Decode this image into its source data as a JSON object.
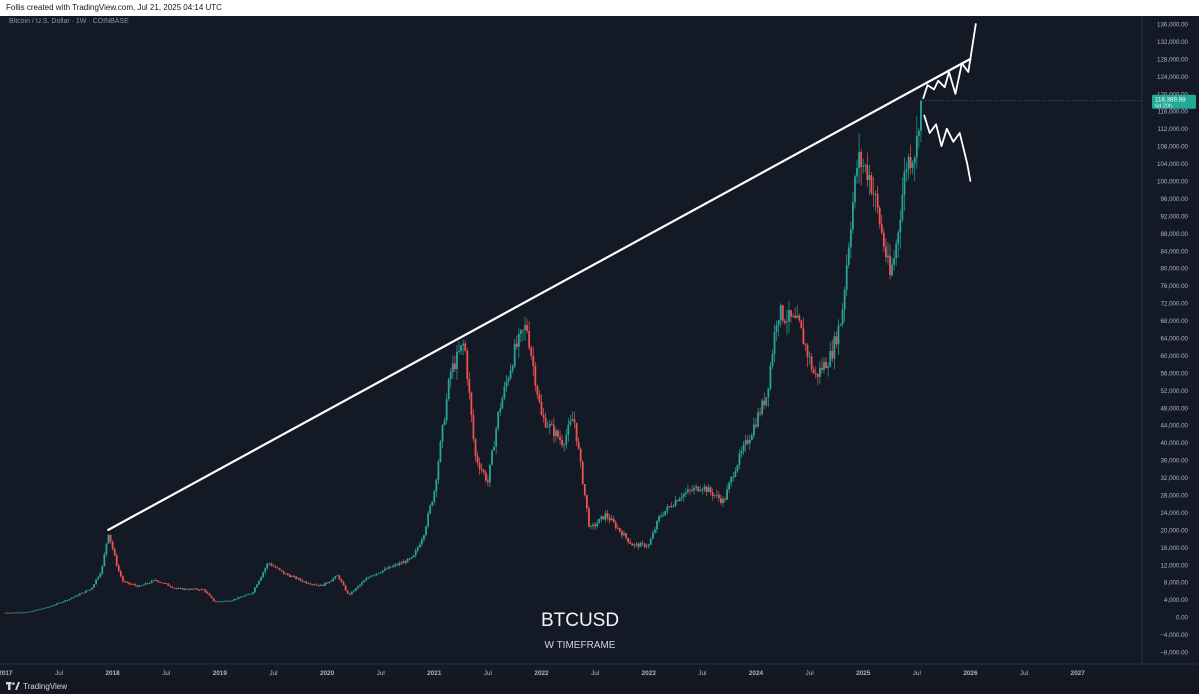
{
  "header": {
    "credit": "Follis created with TradingView.com, Jul 21, 2025 04:14 UTC",
    "symbol_info": "Bitcoin / U.S. Dollar · 1W · COINBASE"
  },
  "annotation": {
    "title": "BTCUSD",
    "subtitle": "W TIMEFRAME"
  },
  "footer": {
    "brand": "TradingView"
  },
  "colors": {
    "background": "#131a26",
    "up": "#26a69a",
    "down": "#ef5350",
    "trendline": "#ffffff",
    "price_tag": "#22ab94",
    "axis_text": "#b2b5be"
  },
  "chart_data": {
    "type": "candlestick",
    "symbol": "BTCUSD",
    "timeframe": "1W",
    "exchange": "COINBASE",
    "y_axis": {
      "range": [
        -8000,
        136000
      ],
      "ticks": [
        "136,000.00",
        "132,000.00",
        "128,000.00",
        "124,000.00",
        "120,000.00",
        "116,000.00",
        "112,000.00",
        "108,000.00",
        "104,000.00",
        "100,000.00",
        "96,000.00",
        "92,000.00",
        "88,000.00",
        "84,000.00",
        "80,000.00",
        "76,000.00",
        "72,000.00",
        "68,000.00",
        "64,000.00",
        "60,000.00",
        "56,000.00",
        "52,000.00",
        "48,000.00",
        "44,000.00",
        "40,000.00",
        "36,000.00",
        "32,000.00",
        "28,000.00",
        "24,000.00",
        "20,000.00",
        "16,000.00",
        "12,000.00",
        "8,000.00",
        "4,000.00",
        "0.00",
        "−4,000.00",
        "−8,000.00"
      ],
      "tick_values": [
        136000,
        132000,
        128000,
        124000,
        120000,
        116000,
        112000,
        108000,
        104000,
        100000,
        96000,
        92000,
        88000,
        84000,
        80000,
        76000,
        72000,
        68000,
        64000,
        60000,
        56000,
        52000,
        48000,
        44000,
        40000,
        36000,
        32000,
        28000,
        24000,
        20000,
        16000,
        12000,
        8000,
        4000,
        0,
        -4000,
        -8000
      ]
    },
    "x_axis": {
      "range": [
        2016.95,
        2027.6
      ],
      "ticks": [
        {
          "t": 2017.0,
          "label": "2017"
        },
        {
          "t": 2017.5,
          "label": "Jul"
        },
        {
          "t": 2018.0,
          "label": "2018"
        },
        {
          "t": 2018.5,
          "label": "Jul"
        },
        {
          "t": 2019.0,
          "label": "2019"
        },
        {
          "t": 2019.5,
          "label": "Jul"
        },
        {
          "t": 2020.0,
          "label": "2020"
        },
        {
          "t": 2020.5,
          "label": "Jul"
        },
        {
          "t": 2021.0,
          "label": "2021"
        },
        {
          "t": 2021.5,
          "label": "Jul"
        },
        {
          "t": 2022.0,
          "label": "2022"
        },
        {
          "t": 2022.5,
          "label": "Jul"
        },
        {
          "t": 2023.0,
          "label": "2023"
        },
        {
          "t": 2023.5,
          "label": "Jul"
        },
        {
          "t": 2024.0,
          "label": "2024"
        },
        {
          "t": 2024.5,
          "label": "Jul"
        },
        {
          "t": 2025.0,
          "label": "2025"
        },
        {
          "t": 2025.5,
          "label": "Jul"
        },
        {
          "t": 2026.0,
          "label": "2026"
        },
        {
          "t": 2026.5,
          "label": "Jul"
        },
        {
          "t": 2027.0,
          "label": "2027"
        }
      ]
    },
    "price_path": [
      [
        2017.0,
        1000
      ],
      [
        2017.2,
        1100
      ],
      [
        2017.4,
        2300
      ],
      [
        2017.6,
        4200
      ],
      [
        2017.8,
        6500
      ],
      [
        2017.9,
        11000
      ],
      [
        2017.96,
        19500
      ],
      [
        2018.05,
        11000
      ],
      [
        2018.1,
        8000
      ],
      [
        2018.25,
        7000
      ],
      [
        2018.4,
        8500
      ],
      [
        2018.6,
        6500
      ],
      [
        2018.85,
        6300
      ],
      [
        2018.95,
        3500
      ],
      [
        2019.1,
        3800
      ],
      [
        2019.3,
        5500
      ],
      [
        2019.45,
        12500
      ],
      [
        2019.6,
        10000
      ],
      [
        2019.8,
        8000
      ],
      [
        2019.95,
        7200
      ],
      [
        2020.1,
        9500
      ],
      [
        2020.2,
        5000
      ],
      [
        2020.4,
        9500
      ],
      [
        2020.6,
        11500
      ],
      [
        2020.8,
        13500
      ],
      [
        2020.9,
        19000
      ],
      [
        2021.0,
        29000
      ],
      [
        2021.15,
        56000
      ],
      [
        2021.28,
        63000
      ],
      [
        2021.38,
        37000
      ],
      [
        2021.5,
        31000
      ],
      [
        2021.6,
        47000
      ],
      [
        2021.75,
        61000
      ],
      [
        2021.86,
        67000
      ],
      [
        2022.0,
        46000
      ],
      [
        2022.2,
        40000
      ],
      [
        2022.3,
        46000
      ],
      [
        2022.45,
        20000
      ],
      [
        2022.6,
        23500
      ],
      [
        2022.85,
        16500
      ],
      [
        2023.0,
        16500
      ],
      [
        2023.1,
        23000
      ],
      [
        2023.3,
        28000
      ],
      [
        2023.5,
        30000
      ],
      [
        2023.7,
        26500
      ],
      [
        2023.8,
        34000
      ],
      [
        2023.95,
        42000
      ],
      [
        2024.1,
        51000
      ],
      [
        2024.2,
        70000
      ],
      [
        2024.4,
        67000
      ],
      [
        2024.55,
        55000
      ],
      [
        2024.7,
        60000
      ],
      [
        2024.8,
        69000
      ],
      [
        2024.88,
        90000
      ],
      [
        2024.95,
        105000
      ],
      [
        2025.05,
        102000
      ],
      [
        2025.12,
        95000
      ],
      [
        2025.25,
        78000
      ],
      [
        2025.3,
        84000
      ],
      [
        2025.4,
        104000
      ],
      [
        2025.48,
        107000
      ],
      [
        2025.5,
        109000
      ],
      [
        2025.53,
        118000
      ],
      [
        2025.55,
        118389.98
      ]
    ],
    "trendline": [
      [
        2017.96,
        20000
      ],
      [
        2026.0,
        128000
      ]
    ],
    "scenario_up": [
      [
        2025.56,
        119000
      ],
      [
        2025.6,
        122000
      ],
      [
        2025.66,
        121000
      ],
      [
        2025.7,
        123000
      ],
      [
        2025.76,
        121500
      ],
      [
        2025.8,
        125000
      ],
      [
        2025.86,
        120000
      ],
      [
        2025.92,
        127000
      ],
      [
        2025.98,
        125000
      ],
      [
        2026.05,
        136000
      ]
    ],
    "scenario_down": [
      [
        2025.57,
        115000
      ],
      [
        2025.62,
        111000
      ],
      [
        2025.68,
        113000
      ],
      [
        2025.73,
        108000
      ],
      [
        2025.78,
        112000
      ],
      [
        2025.84,
        109000
      ],
      [
        2025.9,
        111000
      ],
      [
        2025.97,
        104000
      ],
      [
        2026.0,
        100000
      ]
    ],
    "last_price": {
      "value": 118389.98,
      "label": "118,389.98",
      "countdown": "6d 20h"
    }
  }
}
